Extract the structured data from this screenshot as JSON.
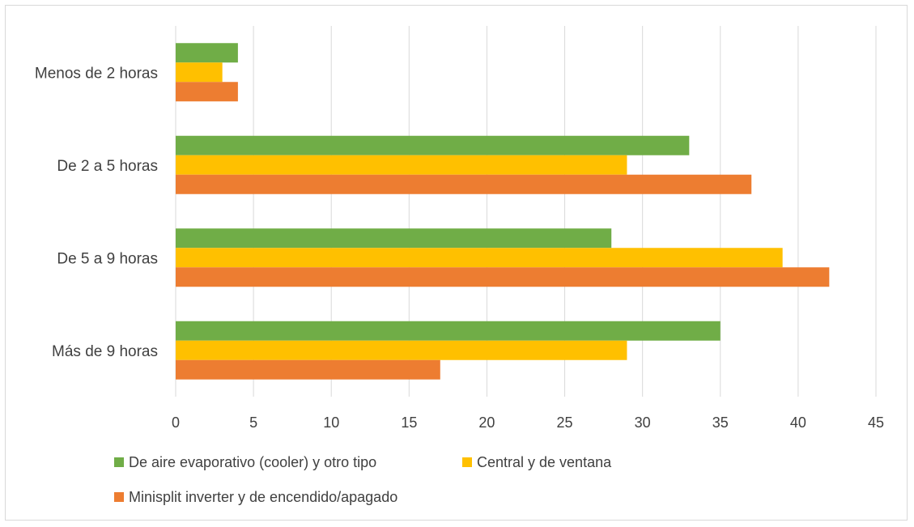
{
  "chart_data": {
    "type": "bar",
    "orientation": "horizontal",
    "title": "",
    "xlabel": "",
    "ylabel": "",
    "categories": [
      "Menos de 2 horas",
      "De 2 a 5 horas",
      "De 5 a 9 horas",
      "Más de 9 horas"
    ],
    "series": [
      {
        "name": "De aire evaporativo (cooler) y otro tipo",
        "color": "#70ad47",
        "values": [
          4,
          33,
          28,
          35
        ]
      },
      {
        "name": "Central y de ventana",
        "color": "#ffc000",
        "values": [
          3,
          29,
          39,
          29
        ]
      },
      {
        "name": "Minisplit inverter y de encendido/apagado",
        "color": "#ed7d31",
        "values": [
          4,
          37,
          42,
          17
        ]
      }
    ],
    "xlim": [
      0,
      45
    ],
    "xticks": [
      "0",
      "5",
      "10",
      "15",
      "20",
      "25",
      "30",
      "35",
      "40",
      "45"
    ],
    "grid": "vertical",
    "legend_position": "bottom"
  }
}
